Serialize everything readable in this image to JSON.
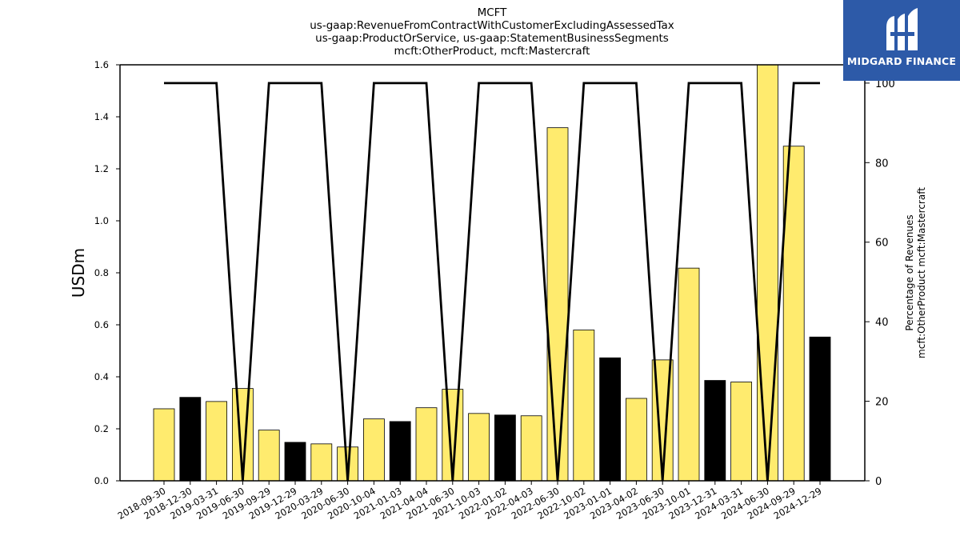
{
  "chart_data": {
    "type": "bar",
    "title_lines": [
      "MCFT",
      "us-gaap:RevenueFromContractWithCustomerExcludingAssessedTax",
      "us-gaap:ProductOrService, us-gaap:StatementBusinessSegments",
      "mcft:OtherProduct, mcft:Mastercraft"
    ],
    "ylabel": "USDm",
    "ylabel_right": [
      "Percentage of Revenues",
      "mcft:OtherProduct mcft:Mastercraft"
    ],
    "ylim": [
      0,
      1.6
    ],
    "ylim_right": [
      0,
      104.6
    ],
    "yticks": [
      "0.0",
      "0.2",
      "0.4",
      "0.6",
      "0.8",
      "1.0",
      "1.2",
      "1.4",
      "1.6"
    ],
    "yticks_right": [
      "0",
      "20",
      "40",
      "60",
      "80",
      "100"
    ],
    "categories": [
      "2018-09-30",
      "2018-12-30",
      "2019-03-31",
      "2019-06-30",
      "2019-09-29",
      "2019-12-29",
      "2020-03-29",
      "2020-06-30",
      "2020-10-04",
      "2021-01-03",
      "2021-04-04",
      "2021-06-30",
      "2021-10-03",
      "2022-01-02",
      "2022-04-03",
      "2022-06-30",
      "2022-10-02",
      "2023-01-01",
      "2023-04-02",
      "2023-06-30",
      "2023-10-01",
      "2023-12-31",
      "2024-03-31",
      "2024-06-30",
      "2024-09-29",
      "2024-12-29"
    ],
    "values": [
      0.277,
      0.321,
      0.305,
      0.355,
      0.195,
      0.148,
      0.142,
      0.13,
      0.238,
      0.228,
      0.281,
      0.352,
      0.259,
      0.253,
      0.25,
      1.358,
      0.58,
      0.473,
      0.317,
      0.465,
      0.818,
      0.386,
      0.38,
      1.6,
      1.287,
      0.553
    ],
    "bar_colors": [
      "#ffeb6e",
      "#000000",
      "#ffeb6e",
      "#ffeb6e",
      "#ffeb6e",
      "#000000",
      "#ffeb6e",
      "#ffeb6e",
      "#ffeb6e",
      "#000000",
      "#ffeb6e",
      "#ffeb6e",
      "#ffeb6e",
      "#000000",
      "#ffeb6e",
      "#ffeb6e",
      "#ffeb6e",
      "#000000",
      "#ffeb6e",
      "#ffeb6e",
      "#ffeb6e",
      "#000000",
      "#ffeb6e",
      "#ffeb6e",
      "#ffeb6e",
      "#000000"
    ],
    "percentage_line": [
      100,
      100,
      100,
      0,
      100,
      100,
      100,
      0,
      100,
      100,
      100,
      0,
      100,
      100,
      100,
      0,
      100,
      100,
      100,
      0,
      100,
      100,
      100,
      0,
      100,
      100
    ],
    "line_color": "#000000"
  },
  "logo": {
    "text": "MIDGARD FINANCE",
    "background": "#2d5aa8"
  }
}
